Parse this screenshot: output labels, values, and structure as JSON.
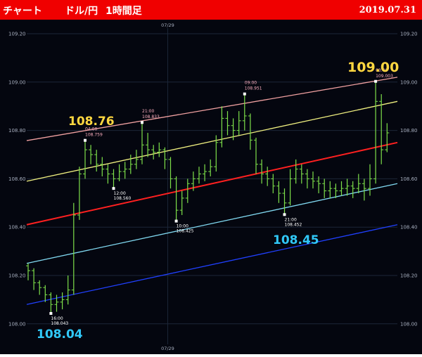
{
  "header": {
    "title": "チャート",
    "pair": "ドル/円",
    "timeframe": "1時間足",
    "date": "2019.07.31"
  },
  "colors": {
    "header_bg": "#f00000",
    "chart_bg": "#04060f",
    "bar": "#7ee04a",
    "grid": "#1c2638"
  },
  "chart_data": {
    "type": "ohlc",
    "y_ticks": [
      "108.00",
      "108.20",
      "108.40",
      "108.60",
      "108.80",
      "109.00",
      "109.20"
    ],
    "ylim": [
      108.0,
      109.2
    ],
    "x_label": "07/29",
    "x_label_bar": 24.5,
    "grid": true,
    "bars": [
      [
        108.24,
        108.25,
        108.18,
        108.22
      ],
      [
        108.22,
        108.23,
        108.14,
        108.17
      ],
      [
        108.17,
        108.18,
        108.12,
        108.15
      ],
      [
        108.15,
        108.16,
        108.09,
        108.12
      ],
      [
        108.12,
        108.13,
        108.043,
        108.08
      ],
      [
        108.08,
        108.12,
        108.05,
        108.09
      ],
      [
        108.09,
        108.13,
        108.06,
        108.1
      ],
      [
        108.1,
        108.2,
        108.08,
        108.14
      ],
      [
        108.14,
        108.5,
        108.12,
        108.45
      ],
      [
        108.45,
        108.65,
        108.43,
        108.62
      ],
      [
        108.62,
        108.759,
        108.6,
        108.72
      ],
      [
        108.72,
        108.74,
        108.66,
        108.7
      ],
      [
        108.7,
        108.72,
        108.63,
        108.66
      ],
      [
        108.66,
        108.69,
        108.61,
        108.64
      ],
      [
        108.64,
        108.66,
        108.58,
        108.62
      ],
      [
        108.62,
        108.64,
        108.56,
        108.6
      ],
      [
        108.6,
        108.66,
        108.59,
        108.63
      ],
      [
        108.63,
        108.67,
        108.6,
        108.64
      ],
      [
        108.64,
        108.7,
        108.62,
        108.66
      ],
      [
        108.66,
        108.72,
        108.64,
        108.68
      ],
      [
        108.68,
        108.833,
        108.66,
        108.74
      ],
      [
        108.74,
        108.79,
        108.69,
        108.72
      ],
      [
        108.72,
        108.74,
        108.68,
        108.71
      ],
      [
        108.71,
        108.75,
        108.69,
        108.72
      ],
      [
        108.72,
        108.73,
        108.64,
        108.68
      ],
      [
        108.68,
        108.69,
        108.56,
        108.6
      ],
      [
        108.6,
        108.61,
        108.425,
        108.47
      ],
      [
        108.47,
        108.55,
        108.45,
        108.52
      ],
      [
        108.52,
        108.6,
        108.5,
        108.58
      ],
      [
        108.58,
        108.63,
        108.55,
        108.6
      ],
      [
        108.6,
        108.65,
        108.58,
        108.62
      ],
      [
        108.62,
        108.66,
        108.59,
        108.63
      ],
      [
        108.63,
        108.68,
        108.61,
        108.65
      ],
      [
        108.65,
        108.78,
        108.63,
        108.75
      ],
      [
        108.75,
        108.9,
        108.73,
        108.85
      ],
      [
        108.85,
        108.88,
        108.78,
        108.82
      ],
      [
        108.82,
        108.85,
        108.76,
        108.8
      ],
      [
        108.8,
        108.88,
        108.78,
        108.84
      ],
      [
        108.84,
        108.951,
        108.8,
        108.86
      ],
      [
        108.86,
        108.87,
        108.72,
        108.76
      ],
      [
        108.76,
        108.77,
        108.62,
        108.66
      ],
      [
        108.66,
        108.68,
        108.58,
        108.62
      ],
      [
        108.62,
        108.65,
        108.57,
        108.6
      ],
      [
        108.6,
        108.62,
        108.54,
        108.57
      ],
      [
        108.57,
        108.59,
        108.5,
        108.54
      ],
      [
        108.54,
        108.56,
        108.452,
        108.5
      ],
      [
        108.5,
        108.64,
        108.49,
        108.6
      ],
      [
        108.6,
        108.68,
        108.58,
        108.64
      ],
      [
        108.64,
        108.66,
        108.58,
        108.62
      ],
      [
        108.62,
        108.64,
        108.56,
        108.6
      ],
      [
        108.6,
        108.63,
        108.56,
        108.59
      ],
      [
        108.59,
        108.61,
        108.54,
        108.58
      ],
      [
        108.58,
        108.6,
        108.52,
        108.55
      ],
      [
        108.55,
        108.59,
        108.52,
        108.56
      ],
      [
        108.56,
        108.58,
        108.52,
        108.55
      ],
      [
        108.55,
        108.59,
        108.53,
        108.56
      ],
      [
        108.56,
        108.6,
        108.53,
        108.57
      ],
      [
        108.57,
        108.59,
        108.52,
        108.56
      ],
      [
        108.56,
        108.62,
        108.54,
        108.58
      ],
      [
        108.58,
        108.6,
        108.51,
        108.56
      ],
      [
        108.56,
        108.66,
        108.53,
        108.6
      ],
      [
        108.6,
        109.003,
        108.58,
        108.92
      ],
      [
        108.92,
        108.95,
        108.66,
        108.72
      ],
      [
        108.72,
        108.83,
        108.71,
        108.79
      ]
    ],
    "trend_lines": [
      {
        "color": "#f0a0a0",
        "start": 108.758,
        "end": 109.02
      },
      {
        "color": "#f0f080",
        "start": 108.59,
        "end": 108.92
      },
      {
        "color": "#ff2020",
        "start": 108.41,
        "end": 108.75
      },
      {
        "color": "#80d8f0",
        "start": 108.25,
        "end": 108.58
      },
      {
        "color": "#2040ff",
        "start": 108.08,
        "end": 108.41
      }
    ],
    "markers": [
      {
        "bar": 4,
        "price": 108.043,
        "time": "16:00",
        "value": "108.043",
        "side": "below",
        "color": "#ffffff"
      },
      {
        "bar": 10,
        "price": 108.759,
        "time": "04:00",
        "value": "108.759",
        "side": "above",
        "color": "#ffb0c0"
      },
      {
        "bar": 15,
        "price": 108.56,
        "time": "12:00",
        "value": "108.560",
        "side": "below",
        "color": "#ffffff"
      },
      {
        "bar": 20,
        "price": 108.833,
        "time": "21:00",
        "value": "108.833",
        "side": "above",
        "color": "#ffb0c0"
      },
      {
        "bar": 26,
        "price": 108.425,
        "time": "10:00",
        "value": "108.425",
        "side": "below",
        "color": "#ffffff"
      },
      {
        "bar": 38,
        "price": 108.951,
        "time": "09:00",
        "value": "108.951",
        "side": "above",
        "color": "#ffb0c0"
      },
      {
        "bar": 45,
        "price": 108.452,
        "time": "21:00",
        "value": "108.452",
        "side": "below",
        "color": "#ffffff"
      },
      {
        "bar": 61,
        "price": 109.003,
        "time": "03:00",
        "value": "109.003",
        "side": "above",
        "color": "#ffb0c0"
      }
    ],
    "annotations": [
      {
        "text": "108.76",
        "color": "#ffd740"
      },
      {
        "text": "109.00",
        "color": "#ffd740"
      },
      {
        "text": "108.04",
        "color": "#30c8f8"
      },
      {
        "text": "108.45",
        "color": "#30c8f8"
      }
    ]
  }
}
